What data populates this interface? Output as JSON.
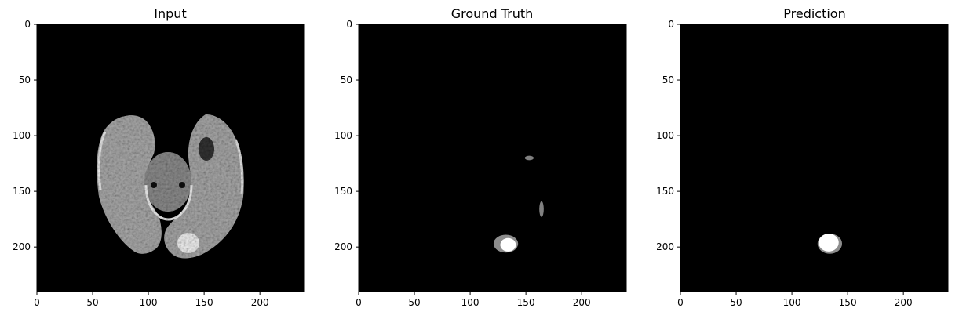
{
  "chart_data": [
    {
      "type": "image",
      "title": "Input",
      "xlim": [
        0,
        240
      ],
      "ylim": [
        240,
        0
      ],
      "xticks": [
        0,
        50,
        100,
        150,
        200
      ],
      "yticks": [
        0,
        50,
        100,
        150,
        200
      ],
      "xtick_labels": [
        "0",
        "50",
        "100",
        "150",
        "200"
      ],
      "ytick_labels": [
        "0",
        "50",
        "100",
        "150",
        "200"
      ],
      "content": "brain-mri-axial-slice",
      "colormap": "gray",
      "regions": [
        {
          "name": "left-hemisphere",
          "cx": 82,
          "cy": 150,
          "rx": 45,
          "ry": 72,
          "intensity": 0.7
        },
        {
          "name": "right-hemisphere",
          "cx": 158,
          "cy": 150,
          "rx": 48,
          "ry": 70,
          "intensity": 0.7
        },
        {
          "name": "brainstem",
          "cx": 120,
          "cy": 137,
          "rx": 22,
          "ry": 28,
          "intensity": 0.55
        },
        {
          "name": "dark-lesion",
          "cx": 153,
          "cy": 112,
          "rx": 8,
          "ry": 11,
          "intensity": 0.2
        },
        {
          "name": "bright-lesion",
          "cx": 136,
          "cy": 195,
          "rx": 12,
          "ry": 12,
          "intensity": 0.97
        }
      ]
    },
    {
      "type": "image",
      "title": "Ground Truth",
      "xlim": [
        0,
        240
      ],
      "ylim": [
        240,
        0
      ],
      "xticks": [
        0,
        50,
        100,
        150,
        200
      ],
      "yticks": [
        0,
        50,
        100,
        150,
        200
      ],
      "xtick_labels": [
        "0",
        "50",
        "100",
        "150",
        "200"
      ],
      "ytick_labels": [
        "0",
        "50",
        "100",
        "150",
        "200"
      ],
      "content": "segmentation-mask",
      "colormap": "gray",
      "regions": [
        {
          "name": "tumor-edema-outer",
          "cx": 132,
          "cy": 197,
          "rx": 11,
          "ry": 8,
          "intensity": 0.55
        },
        {
          "name": "tumor-core",
          "cx": 134,
          "cy": 198,
          "rx": 7,
          "ry": 6,
          "intensity": 1.0
        },
        {
          "name": "small-region-1",
          "cx": 153,
          "cy": 120,
          "rx": 4,
          "ry": 2,
          "intensity": 0.5
        },
        {
          "name": "small-region-2",
          "cx": 164,
          "cy": 166,
          "rx": 2,
          "ry": 7,
          "intensity": 0.5
        }
      ]
    },
    {
      "type": "image",
      "title": "Prediction",
      "xlim": [
        0,
        240
      ],
      "ylim": [
        240,
        0
      ],
      "xticks": [
        0,
        50,
        100,
        150,
        200
      ],
      "yticks": [
        0,
        50,
        100,
        150,
        200
      ],
      "xtick_labels": [
        "0",
        "50",
        "100",
        "150",
        "200"
      ],
      "ytick_labels": [
        "0",
        "50",
        "100",
        "150",
        "200"
      ],
      "content": "segmentation-mask",
      "colormap": "gray",
      "regions": [
        {
          "name": "tumor-outer",
          "cx": 134,
          "cy": 197,
          "rx": 11,
          "ry": 9,
          "intensity": 0.55
        },
        {
          "name": "tumor-core",
          "cx": 133,
          "cy": 196,
          "rx": 9,
          "ry": 8,
          "intensity": 1.0
        }
      ]
    }
  ]
}
